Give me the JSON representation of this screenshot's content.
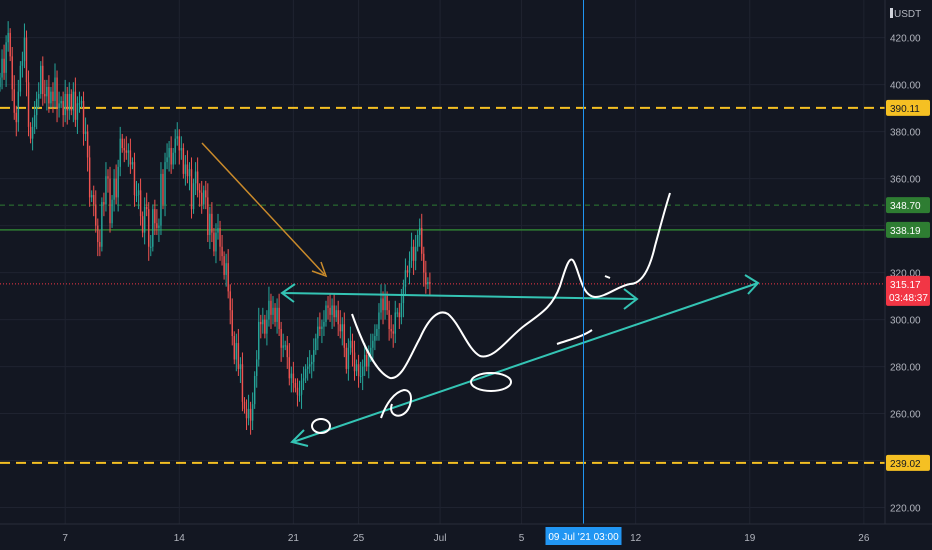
{
  "chart_data": {
    "type": "candlestick",
    "currency_label": "USDT",
    "ylim": [
      213,
      436
    ],
    "y_ticks": [
      {
        "value": 220,
        "label": "220.00"
      },
      {
        "value": 240,
        "label": "240.00"
      },
      {
        "value": 260,
        "label": "260.00"
      },
      {
        "value": 280,
        "label": "280.00"
      },
      {
        "value": 300,
        "label": "300.00"
      },
      {
        "value": 320,
        "label": "320.00"
      },
      {
        "value": 340,
        "label": "340.00"
      },
      {
        "value": 360,
        "label": "360.00"
      },
      {
        "value": 380,
        "label": "380.00"
      },
      {
        "value": 400,
        "label": "400.00"
      },
      {
        "value": 420,
        "label": "420.00"
      }
    ],
    "x_ticks": [
      {
        "day": 7,
        "label": "7"
      },
      {
        "day": 14,
        "label": "14"
      },
      {
        "day": 21,
        "label": "21"
      },
      {
        "day": 25,
        "label": "25"
      },
      {
        "day": 30,
        "label": "Jul"
      },
      {
        "day": 35,
        "label": "5"
      },
      {
        "day": 42,
        "label": "12"
      },
      {
        "day": 49,
        "label": "19"
      },
      {
        "day": 56,
        "label": "26"
      }
    ],
    "x_range": [
      3.0,
      56.5
    ],
    "levels": [
      {
        "value": 390.11,
        "label": "390.11",
        "color": "#f5c023",
        "style": "dashed",
        "width": 2
      },
      {
        "value": 348.7,
        "label": "348.70",
        "color": "#2e7d32",
        "style": "dashed",
        "width": 1
      },
      {
        "value": 338.19,
        "label": "338.19",
        "color": "#2e7d32",
        "style": "solid",
        "width": 1.5
      },
      {
        "value": 239.02,
        "label": "239.02",
        "color": "#f5c023",
        "style": "dashed",
        "width": 2
      }
    ],
    "current_price": {
      "value": 315.17,
      "label": "315.17",
      "countdown": "03:48:37",
      "color": "#f23645"
    },
    "crosshair": {
      "day": 38.8,
      "label": "09 Jul '21   03:00",
      "color": "#2196f3"
    },
    "series": [
      {
        "name": "candles",
        "start_day": 3.0,
        "step_days": 0.125,
        "close": [
          403.0,
          411.0,
          405.0,
          418.0,
          422.0,
          412.0,
          398.0,
          388.0,
          384.0,
          397.0,
          408.0,
          410.0,
          420.0,
          401.0,
          382.0,
          377.0,
          382.0,
          387.0,
          394.0,
          396.0,
          408.0,
          396.0,
          395.0,
          399.0,
          392.0,
          397.0,
          393.0,
          403.0,
          390.0,
          392.0,
          393.0,
          387.0,
          396.0,
          389.0,
          396.0,
          389.0,
          397.0,
          385.0,
          392.0,
          392.0,
          393.0,
          379.0,
          380.0,
          369.0,
          352.0,
          353.0,
          349.0,
          340.0,
          333.0,
          331.0,
          350.0,
          349.0,
          361.0,
          360.0,
          341.0,
          351.0,
          360.0,
          352.0,
          365.0,
          377.0,
          373.0,
          372.0,
          371.0,
          372.0,
          366.0,
          367.0,
          353.0,
          353.0,
          355.0,
          344.0,
          337.0,
          348.0,
          347.0,
          331.0,
          331.0,
          347.0,
          341.0,
          339.0,
          340.0,
          362.0,
          349.0,
          367.0,
          369.0,
          373.0,
          366.0,
          371.0,
          377.0,
          378.0,
          372.0,
          373.0,
          362.0,
          366.0,
          361.0,
          364.0,
          347.0,
          358.0,
          363.0,
          355.0,
          354.0,
          349.0,
          355.0,
          352.0,
          336.0,
          345.0,
          337.0,
          329.0,
          337.0,
          339.0,
          331.0,
          327.0,
          319.0,
          324.0,
          312.0,
          304.0,
          293.0,
          283.0,
          290.0,
          279.0,
          281.0,
          265.0,
          262.0,
          258.0,
          262.0,
          257.0,
          264.0,
          276.0,
          283.0,
          299.0,
          298.0,
          300.0,
          294.0,
          300.0,
          308.0,
          302.0,
          305.0,
          299.0,
          305.0,
          296.0,
          288.0,
          289.0,
          289.0,
          284.0,
          275.0,
          277.0,
          273.0,
          271.0,
          268.0,
          268.0,
          274.0,
          275.0,
          279.0,
          280.0,
          281.0,
          282.0,
          287.0,
          292.0,
          297.0,
          296.0,
          297.0,
          299.0,
          306.0,
          305.0,
          302.0,
          306.0,
          301.0,
          304.0,
          298.0,
          295.0,
          298.0,
          288.0,
          279.0,
          288.0,
          291.0,
          286.0,
          278.0,
          281.0,
          276.0,
          276.0,
          280.0,
          285.0,
          280.0,
          285.0,
          288.0,
          291.0,
          293.0,
          296.0,
          303.0,
          309.0,
          304.0,
          310.0,
          304.0,
          296.0,
          295.0,
          294.0,
          303.0,
          303.0,
          301.0,
          307.0,
          314.0,
          321.0,
          320.0,
          325.0,
          331.0,
          325.0,
          331.0,
          336.0,
          339.0,
          328.0,
          320.0,
          315.0,
          316.0,
          315.17
        ]
      }
    ]
  }
}
